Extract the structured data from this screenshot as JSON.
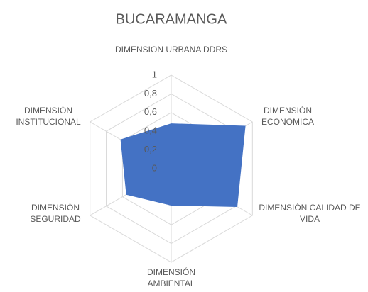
{
  "chart_data": {
    "type": "radar",
    "title": "BUCARAMANGA",
    "categories": [
      "DIMENSION URBANA DDRS",
      "DIMENSIÓN ECONOMICA",
      "DIMENSIÓN CALIDAD DE VIDA",
      "DIMENSIÓN AMBIENTAL",
      "DIMENSIÓN SEGURIDAD",
      "DIMENSIÓN INSTITUCIONAL"
    ],
    "series": [
      {
        "name": "BUCARAMANGA",
        "color": "#4472c4",
        "values": [
          0.48,
          0.91,
          0.81,
          0.39,
          0.55,
          0.62
        ]
      }
    ],
    "ylim": [
      0,
      1
    ],
    "yticks": [
      0,
      {
        "value": 0.2,
        "label": "0,2"
      },
      {
        "value": 0.4,
        "label": "0,4"
      },
      {
        "value": 0.6,
        "label": "0,6"
      },
      {
        "value": 0.8,
        "label": "0,8"
      },
      1
    ],
    "grid": true
  }
}
